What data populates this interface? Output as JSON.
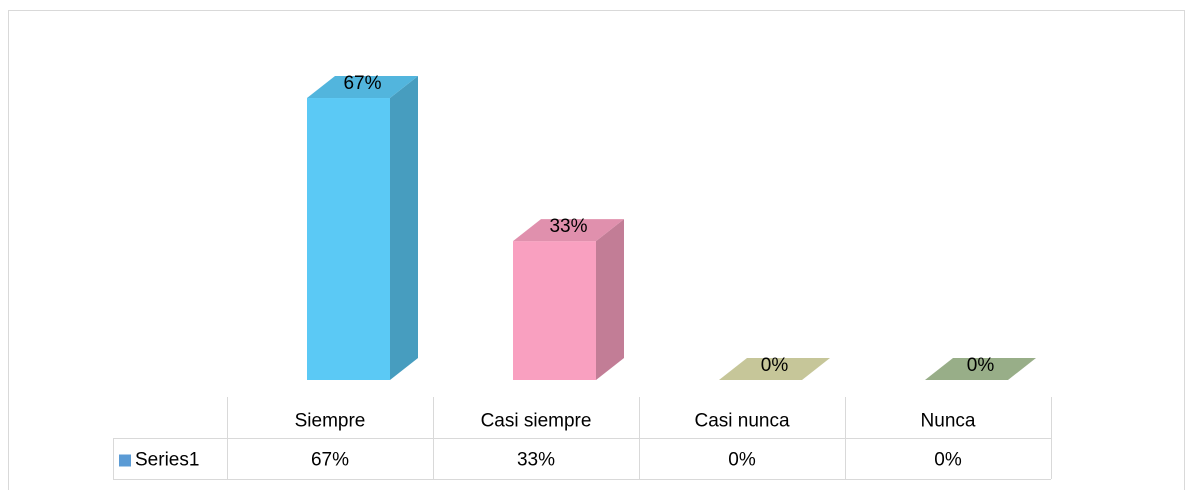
{
  "chart_data": {
    "type": "bar3d",
    "categories": [
      "Siempre",
      "Casi siempre",
      "Casi nunca",
      "Nunca"
    ],
    "series": [
      {
        "name": "Series1",
        "color": "#5b9bd5",
        "values": [
          67,
          33,
          0,
          0
        ],
        "value_labels": [
          "67%",
          "33%",
          "0%",
          "0%"
        ]
      }
    ],
    "colors": [
      "#5bc9f5",
      "#f9a0c0",
      "#dcdcaa",
      "#a9c197"
    ],
    "ylim": [
      0,
      70
    ],
    "data_table": true
  }
}
